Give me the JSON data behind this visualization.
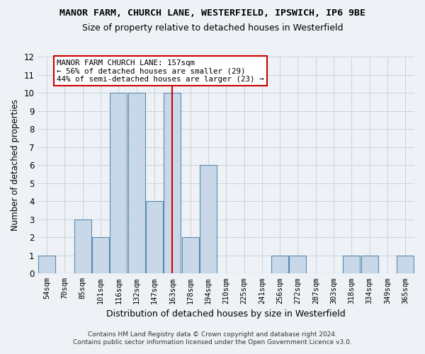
{
  "title_line1": "MANOR FARM, CHURCH LANE, WESTERFIELD, IPSWICH, IP6 9BE",
  "title_line2": "Size of property relative to detached houses in Westerfield",
  "xlabel": "Distribution of detached houses by size in Westerfield",
  "ylabel": "Number of detached properties",
  "categories": [
    "54sqm",
    "70sqm",
    "85sqm",
    "101sqm",
    "116sqm",
    "132sqm",
    "147sqm",
    "163sqm",
    "178sqm",
    "194sqm",
    "210sqm",
    "225sqm",
    "241sqm",
    "256sqm",
    "272sqm",
    "287sqm",
    "303sqm",
    "318sqm",
    "334sqm",
    "349sqm",
    "365sqm"
  ],
  "values": [
    1,
    0,
    3,
    2,
    10,
    10,
    4,
    10,
    2,
    6,
    0,
    0,
    0,
    1,
    1,
    0,
    0,
    1,
    1,
    0,
    1
  ],
  "bar_color": "#c8d8e8",
  "bar_edgecolor": "#5a8ab0",
  "property_index": 7,
  "property_line_color": "#cc0000",
  "ylim": [
    0,
    12
  ],
  "yticks": [
    0,
    1,
    2,
    3,
    4,
    5,
    6,
    7,
    8,
    9,
    10,
    11,
    12
  ],
  "annotation_text": "MANOR FARM CHURCH LANE: 157sqm\n← 56% of detached houses are smaller (29)\n44% of semi-detached houses are larger (23) →",
  "annotation_box_color": "#ffffff",
  "annotation_box_edgecolor": "#cc0000",
  "footer_line1": "Contains HM Land Registry data © Crown copyright and database right 2024.",
  "footer_line2": "Contains public sector information licensed under the Open Government Licence v3.0.",
  "grid_color": "#c8d4dc",
  "background_color": "#eef2f6"
}
